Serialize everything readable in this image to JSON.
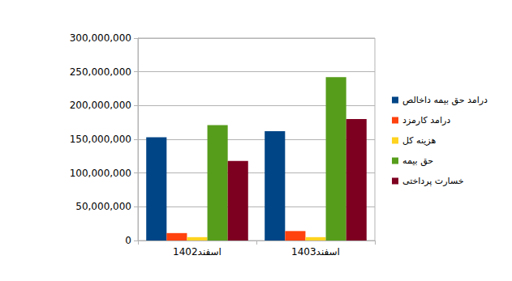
{
  "chart_data": {
    "type": "bar",
    "categories": [
      "1402اسفند",
      "1403اسفند"
    ],
    "series": [
      {
        "name": "درامد حق بیمه داخالص",
        "color": "#004586",
        "values": [
          153000000,
          162000000
        ]
      },
      {
        "name": "درامد کارمزد",
        "color": "#ff420e",
        "values": [
          11000000,
          14000000
        ]
      },
      {
        "name": "هزینه کل",
        "color": "#ffd320",
        "values": [
          5000000,
          5000000
        ]
      },
      {
        "name": "حق بیمه",
        "color": "#579d1c",
        "values": [
          171000000,
          242000000
        ]
      },
      {
        "name": "خسارت پرداختی",
        "color": "#7e0021",
        "values": [
          118000000,
          180000000
        ]
      }
    ],
    "ylim": [
      0,
      300000000
    ],
    "yticks": [
      {
        "value": 0,
        "label": "0"
      },
      {
        "value": 50000000,
        "label": "50,000,000"
      },
      {
        "value": 100000000,
        "label": "100,000,000"
      },
      {
        "value": 150000000,
        "label": "150,000,000"
      },
      {
        "value": 200000000,
        "label": "200,000,000"
      },
      {
        "value": 250000000,
        "label": "250,000,000"
      },
      {
        "value": 300000000,
        "label": "300,000,000"
      }
    ],
    "grid": true,
    "legend": "right"
  }
}
